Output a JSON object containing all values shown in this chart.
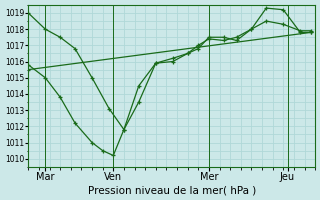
{
  "xlabel": "Pression niveau de la mer( hPa )",
  "bg_color": "#cce8e8",
  "grid_color": "#b0d8d8",
  "line_color": "#1a6b1a",
  "ylim": [
    1009.5,
    1019.5
  ],
  "yticks": [
    1010,
    1011,
    1012,
    1013,
    1014,
    1015,
    1016,
    1017,
    1018,
    1019
  ],
  "xlim": [
    0,
    13.5
  ],
  "day_labels": [
    "Mar",
    "Ven",
    "Mer",
    "Jeu"
  ],
  "day_positions": [
    0.8,
    4.0,
    8.5,
    12.2
  ],
  "vline_positions": [
    0.8,
    4.0,
    8.5,
    12.2
  ],
  "series1_x": [
    0.0,
    0.8,
    1.5,
    2.2,
    3.0,
    3.8,
    4.5,
    5.2,
    6.0,
    6.8,
    7.5,
    8.0,
    8.5,
    9.2,
    9.8,
    10.5,
    11.2,
    12.0,
    12.8,
    13.3
  ],
  "series1_y": [
    1019.0,
    1018.0,
    1017.5,
    1016.8,
    1015.0,
    1013.1,
    1011.8,
    1014.5,
    1015.9,
    1016.2,
    1016.5,
    1016.8,
    1017.5,
    1017.5,
    1017.3,
    1018.0,
    1019.3,
    1019.2,
    1017.8,
    1017.8
  ],
  "series2_x": [
    0.0,
    0.8,
    1.5,
    2.2,
    3.0,
    3.5,
    4.0,
    4.5,
    5.2,
    6.0,
    6.8,
    7.5,
    8.0,
    8.5,
    9.2,
    9.8,
    10.5,
    11.2,
    12.0,
    12.8,
    13.3
  ],
  "series2_y": [
    1015.8,
    1015.0,
    1013.8,
    1012.2,
    1011.0,
    1010.5,
    1010.2,
    1011.8,
    1013.5,
    1015.9,
    1016.0,
    1016.5,
    1017.0,
    1017.4,
    1017.3,
    1017.5,
    1018.0,
    1018.5,
    1018.3,
    1017.9,
    1017.9
  ],
  "series3_x": [
    0.0,
    13.3
  ],
  "series3_y": [
    1015.5,
    1017.8
  ]
}
